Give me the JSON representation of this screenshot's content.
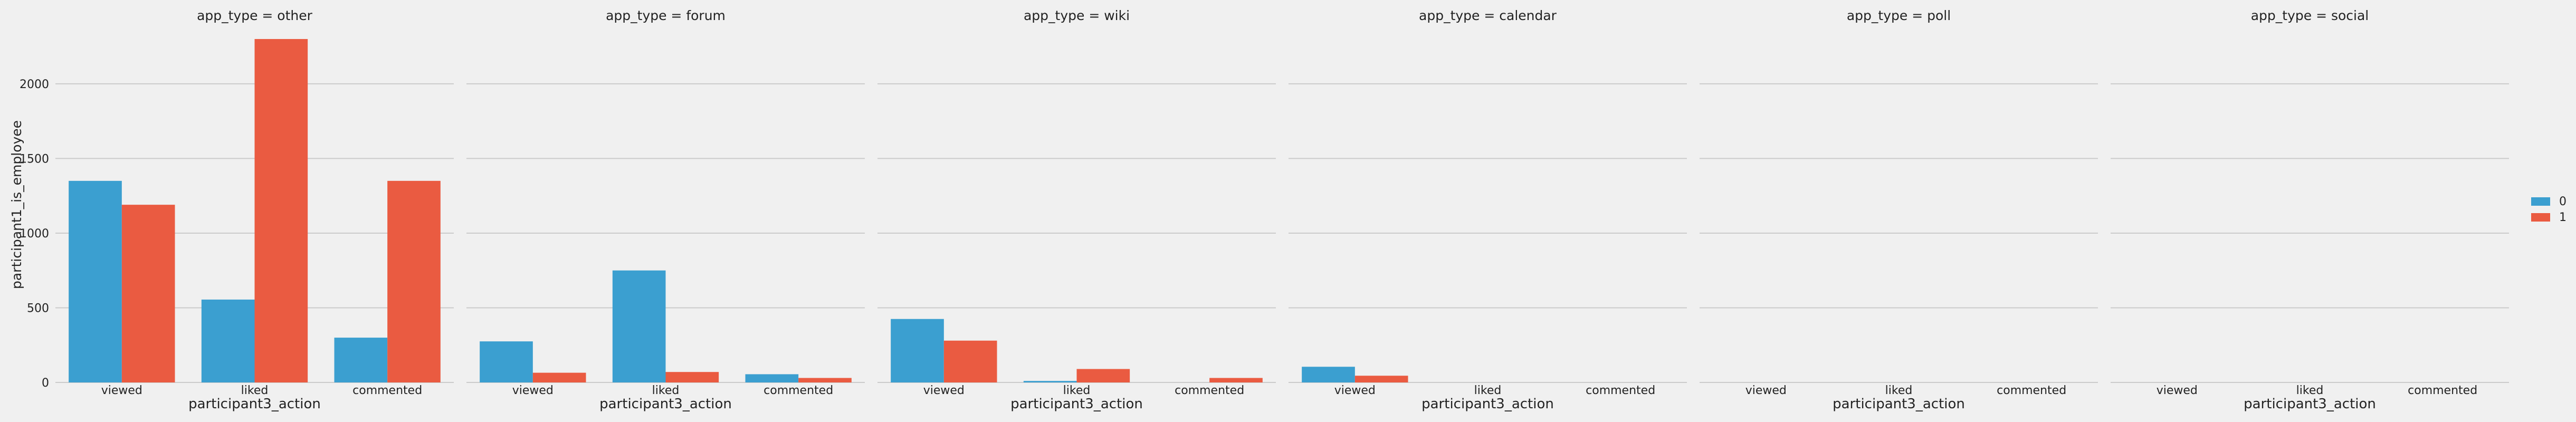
{
  "colors": {
    "background": "#f0f0f0",
    "grid": "#cbcbcb",
    "series_0": "#3b9fd0",
    "series_1": "#ea5b41"
  },
  "chart_data": {
    "type": "bar",
    "facet_variable": "app_type",
    "categories": [
      "viewed",
      "liked",
      "commented"
    ],
    "xlabel": "participant3_action",
    "ylabel": "participant1_is_employee",
    "ylim": [
      0,
      2420
    ],
    "yticks": [
      0,
      500,
      1000,
      1500,
      2000
    ],
    "grid": true,
    "legend": {
      "placement": "center-right",
      "entries": [
        "0",
        "1"
      ]
    },
    "panels": [
      {
        "title": "app_type = other",
        "series": [
          {
            "name": "0",
            "values": [
              1350,
              555,
              300
            ]
          },
          {
            "name": "1",
            "values": [
              1190,
              2300,
              1350
            ]
          }
        ]
      },
      {
        "title": "app_type = forum",
        "series": [
          {
            "name": "0",
            "values": [
              275,
              750,
              55
            ]
          },
          {
            "name": "1",
            "values": [
              65,
              70,
              30
            ]
          }
        ]
      },
      {
        "title": "app_type = wiki",
        "series": [
          {
            "name": "0",
            "values": [
              425,
              10,
              0
            ]
          },
          {
            "name": "1",
            "values": [
              280,
              90,
              30
            ]
          }
        ]
      },
      {
        "title": "app_type = calendar",
        "series": [
          {
            "name": "0",
            "values": [
              105,
              0,
              0
            ]
          },
          {
            "name": "1",
            "values": [
              45,
              0,
              0
            ]
          }
        ]
      },
      {
        "title": "app_type = poll",
        "series": [
          {
            "name": "0",
            "values": [
              0,
              0,
              0
            ]
          },
          {
            "name": "1",
            "values": [
              0,
              0,
              0
            ]
          }
        ]
      },
      {
        "title": "app_type = social",
        "series": [
          {
            "name": "0",
            "values": [
              0,
              0,
              0
            ]
          },
          {
            "name": "1",
            "values": [
              0,
              0,
              0
            ]
          }
        ]
      }
    ]
  }
}
